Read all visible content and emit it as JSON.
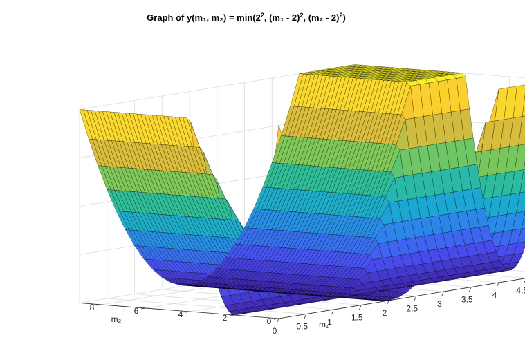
{
  "chart_data": {
    "type": "surface",
    "title_prefix": "Graph of y(m₁, m₂) = min(2",
    "title_sup": "2",
    "title_mid1": ", (m₁ - 2)",
    "title_mid2": ", (m₂ - 2)",
    "title_suffix": ")",
    "function": "min(2^2, (m1-2)^2, (m2-2)^2)",
    "xlabel": "m₁",
    "ylabel": "m₂",
    "xlim": [
      0,
      5
    ],
    "ylim": [
      0,
      9
    ],
    "zlim": [
      0,
      4
    ],
    "xticks": [
      "0",
      "0.5",
      "1",
      "1.5",
      "2",
      "2.5",
      "3",
      "3.5",
      "4",
      "4.5"
    ],
    "yticks": [
      "0",
      "2",
      "4",
      "6",
      "8"
    ],
    "grid": true,
    "colormap": "parula",
    "colormap_stops": [
      "#3e26a8",
      "#4a4cf0",
      "#2f80ee",
      "#1aaad0",
      "#2dbd9a",
      "#7dc858",
      "#d5bb3c",
      "#fbc82f",
      "#f9f326"
    ],
    "edge_color": "#000000",
    "mesh_m1": 30,
    "mesh_m2": 52
  }
}
